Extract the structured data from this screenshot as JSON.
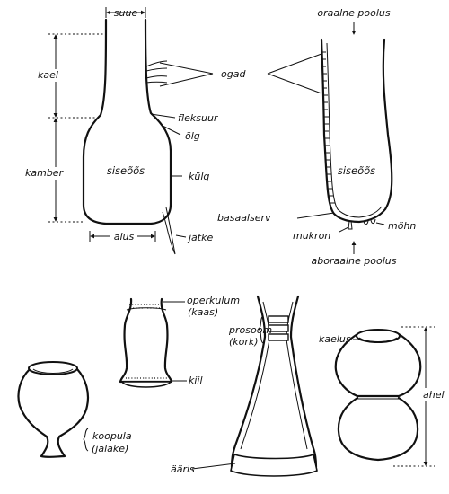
{
  "labels": {
    "suue": "suue",
    "kael": "kael",
    "kamber": "kamber",
    "alus": "alus",
    "ogad": "ogad",
    "fleksuur": "fleksuur",
    "olg": "õlg",
    "kulg": "külg",
    "jatke": "jätke",
    "siseoos_left": "siseõõs",
    "siseoos_right": "siseõõs",
    "oraalne_poolus": "oraalne poolus",
    "aboraalne_poolus": "aboraalne poolus",
    "basaalserv": "basaalserv",
    "mukron": "mukron",
    "mohn": "möhn",
    "operkulum": "operkulum",
    "kaas": "(kaas)",
    "prosoom": "prosoom",
    "kork": "(kork)",
    "kiil": "kiil",
    "kaelus": "kaelus",
    "ahel": "ahel",
    "koopula": "koopula",
    "jalake": "(jalake)",
    "aaris": "ääris"
  }
}
